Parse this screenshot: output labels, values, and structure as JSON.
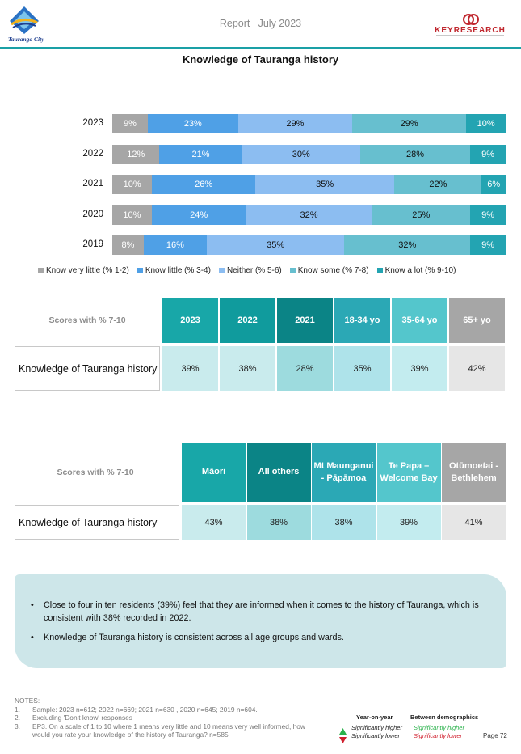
{
  "header": {
    "logo_text": "Tauranga City",
    "report_title": "Report | July 2023",
    "brand_name": "KEYRESEARCH",
    "brand_tagline": "Independent Business Intelligence"
  },
  "chart_title": "Knowledge of Tauranga history",
  "chart_data": {
    "type": "bar",
    "orientation": "horizontal",
    "stacked": true,
    "normalized_to": 100,
    "categories": [
      "2023",
      "2022",
      "2021",
      "2020",
      "2019"
    ],
    "series": [
      {
        "name": "Know very little (% 1-2)",
        "color": "#a6a6a6",
        "values": [
          9,
          12,
          10,
          10,
          8
        ],
        "labels": [
          "9%",
          "12%",
          "10%",
          "10%",
          "8%"
        ]
      },
      {
        "name": "Know little (% 3-4)",
        "color": "#4fa0e6",
        "values": [
          23,
          21,
          26,
          24,
          16
        ],
        "labels": [
          "23%",
          "21%",
          "26%",
          "24%",
          "16%"
        ]
      },
      {
        "name": "Neither (% 5-6)",
        "color": "#8cbdf1",
        "values": [
          29,
          30,
          35,
          32,
          35
        ],
        "labels": [
          "29%",
          "30%",
          "35%",
          "32%",
          "35%"
        ]
      },
      {
        "name": "Know some (% 7-8)",
        "color": "#67bfcf",
        "values": [
          29,
          28,
          22,
          25,
          32
        ],
        "labels": [
          "29%",
          "28%",
          "22%",
          "25%",
          "32%"
        ]
      },
      {
        "name": "Know a lot (% 9-10)",
        "color": "#23a4b2",
        "values": [
          10,
          9,
          6,
          9,
          9
        ],
        "labels": [
          "10%",
          "9%",
          "6%",
          "9%",
          "9%"
        ]
      }
    ],
    "legend_position": "bottom",
    "grid": false
  },
  "table1": {
    "header_label": "Scores with % 7-10",
    "columns": [
      {
        "label": "2023",
        "color": "#18a7a8"
      },
      {
        "label": "2022",
        "color": "#109b9d"
      },
      {
        "label": "2021",
        "color": "#0b8486"
      },
      {
        "label": "18-34 yo",
        "color": "#2ba8b5"
      },
      {
        "label": "35-64 yo",
        "color": "#54c6cc"
      },
      {
        "label": "65+ yo",
        "color": "#a6a6a6"
      }
    ],
    "row_label": "Knowledge of Tauranga history",
    "values": [
      {
        "text": "39%",
        "bg": "#c9ebed"
      },
      {
        "text": "38%",
        "bg": "#c9ebed"
      },
      {
        "text": "28%",
        "bg": "#9ddbde"
      },
      {
        "text": "35%",
        "bg": "#aee3ea"
      },
      {
        "text": "39%",
        "bg": "#c3ecef"
      },
      {
        "text": "42%",
        "bg": "#e6e6e6"
      }
    ]
  },
  "table2": {
    "header_label": "Scores with % 7-10",
    "columns": [
      {
        "label": "Māori",
        "color": "#18a7a8"
      },
      {
        "label": "All others",
        "color": "#0b8486"
      },
      {
        "label": "Mt Maunganui - Pāpāmoa",
        "color": "#2ba8b5"
      },
      {
        "label": "Te Papa – Welcome Bay",
        "color": "#54c6cc"
      },
      {
        "label": "Otūmoetai - Bethlehem",
        "color": "#a6a6a6"
      }
    ],
    "row_label": "Knowledge of Tauranga history",
    "values": [
      {
        "text": "43%",
        "bg": "#c9ebed"
      },
      {
        "text": "38%",
        "bg": "#9ddbde"
      },
      {
        "text": "38%",
        "bg": "#aee3ea"
      },
      {
        "text": "39%",
        "bg": "#c3ecef"
      },
      {
        "text": "41%",
        "bg": "#e6e6e6"
      }
    ]
  },
  "summary": {
    "bullets": [
      "Close to four in ten residents (39%) feel that they are informed when it comes to the history of Tauranga, which is consistent with 38% recorded in 2022.",
      "Knowledge of Tauranga history is consistent across all age groups and wards."
    ]
  },
  "notes": {
    "heading": "NOTES:",
    "items": [
      {
        "num": "1.",
        "text": "Sample: 2023 n=612; 2022 n=669; 2021 n=630 , 2020 n=645; 2019 n=604."
      },
      {
        "num": "2.",
        "text": "Excluding 'Don't know' responses"
      },
      {
        "num": "3.",
        "text": "EP3. On a scale of 1 to 10 where 1 means very little and 10 means very well informed, how would you rate your knowledge of the history of Tauranga? n=585"
      }
    ]
  },
  "significance_legend": {
    "yoy_heading": "Year-on-year",
    "demo_heading": "Between demographics",
    "higher": "Significantly higher",
    "lower": "Significantly lower",
    "higher_color": "#2bb24c",
    "lower_color": "#d0202e"
  },
  "page_number": "Page 72"
}
